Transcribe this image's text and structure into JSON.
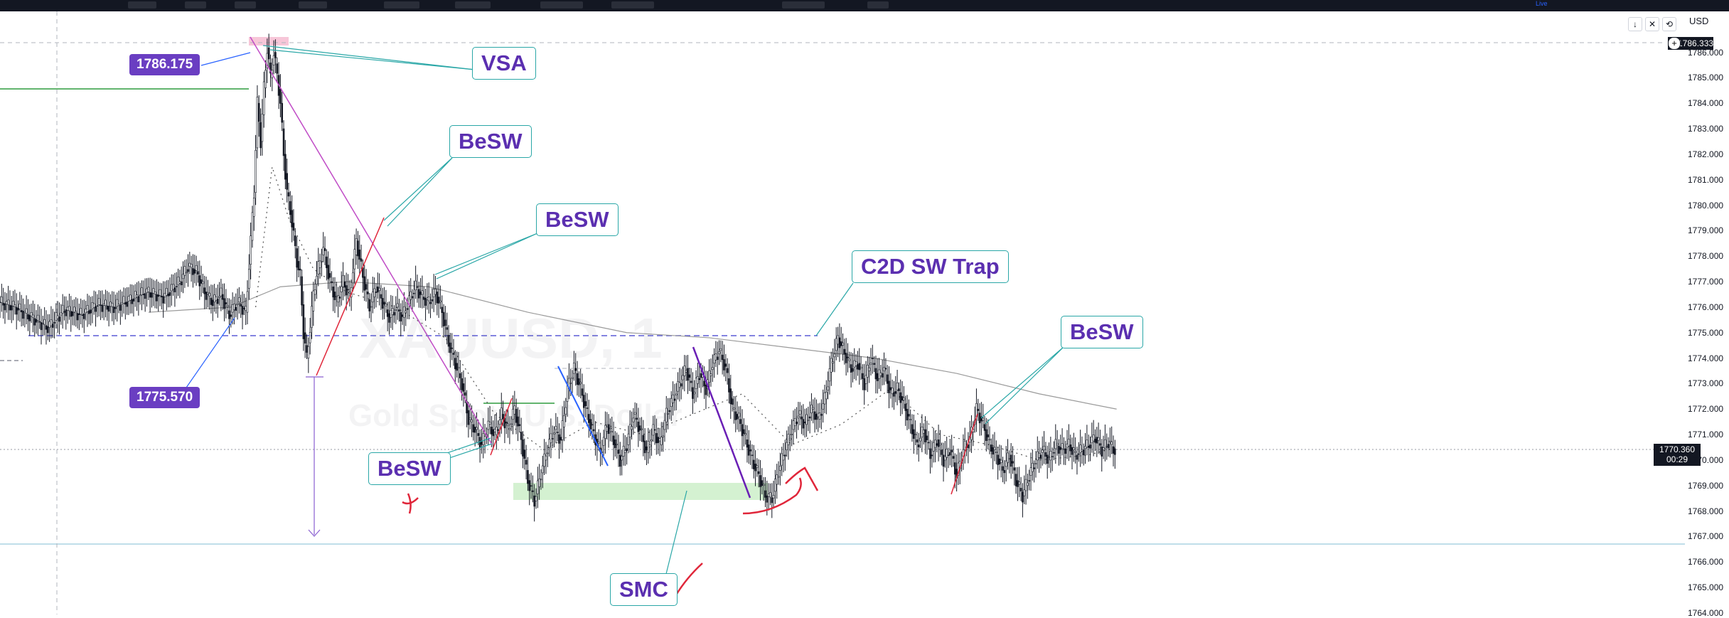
{
  "toolbar": {
    "live_label": "Live"
  },
  "currency": "USD",
  "watermark": {
    "symbol": "XAUUSD, 1",
    "description": "Gold Spot / U.S. Dollar"
  },
  "chart_data": {
    "type": "candlestick",
    "symbol": "XAUUSD",
    "interval": "1",
    "ylim": [
      1764.0,
      1786.6
    ],
    "yticks": [
      1764.0,
      1765.0,
      1766.0,
      1767.0,
      1768.0,
      1769.0,
      1770.0,
      1771.0,
      1772.0,
      1773.0,
      1774.0,
      1775.0,
      1776.0,
      1777.0,
      1778.0,
      1779.0,
      1780.0,
      1781.0,
      1782.0,
      1783.0,
      1784.0,
      1785.0,
      1786.0
    ],
    "ytick_labels": [
      "1764.000",
      "1765.000",
      "1766.000",
      "1767.000",
      "1768.000",
      "1769.000",
      "1770.000",
      "1771.000",
      "1772.000",
      "1773.000",
      "1774.000",
      "1775.000",
      "1776.000",
      "1777.000",
      "1778.000",
      "1779.000",
      "1780.000",
      "1781.000",
      "1782.000",
      "1783.000",
      "1784.000",
      "1785.000",
      "1786.000"
    ],
    "current_price": "1770.360",
    "countdown": "00:29",
    "top_price_tag": "1786.333",
    "price_path": [
      [
        0,
        1776.2
      ],
      [
        10,
        1776.0
      ],
      [
        20,
        1775.6
      ],
      [
        30,
        1775.2
      ],
      [
        40,
        1775.9
      ],
      [
        50,
        1775.7
      ],
      [
        60,
        1776.1
      ],
      [
        70,
        1776.0
      ],
      [
        80,
        1776.3
      ],
      [
        90,
        1776.6
      ],
      [
        100,
        1776.4
      ],
      [
        110,
        1777.0
      ],
      [
        115,
        1777.6
      ],
      [
        120,
        1777.4
      ],
      [
        125,
        1776.6
      ],
      [
        130,
        1776.2
      ],
      [
        135,
        1776.5
      ],
      [
        140,
        1775.7
      ],
      [
        145,
        1776.2
      ],
      [
        150,
        1775.8
      ],
      [
        155,
        1780.5
      ],
      [
        157,
        1784.0
      ],
      [
        159,
        1782.5
      ],
      [
        161,
        1784.6
      ],
      [
        163,
        1786.175
      ],
      [
        165,
        1785.0
      ],
      [
        167,
        1786.0
      ],
      [
        169,
        1785.1
      ],
      [
        171,
        1784.0
      ],
      [
        173,
        1782.0
      ],
      [
        175,
        1780.5
      ],
      [
        177,
        1779.8
      ],
      [
        179,
        1778.8
      ],
      [
        181,
        1777.8
      ],
      [
        183,
        1777.2
      ],
      [
        185,
        1775.0
      ],
      [
        187,
        1774.0
      ],
      [
        189,
        1775.2
      ],
      [
        191,
        1776.5
      ],
      [
        193,
        1777.3
      ],
      [
        197,
        1778.3
      ],
      [
        201,
        1777.0
      ],
      [
        205,
        1776.2
      ],
      [
        209,
        1777.0
      ],
      [
        213,
        1776.4
      ],
      [
        217,
        1778.6
      ],
      [
        221,
        1777.2
      ],
      [
        225,
        1776.0
      ],
      [
        229,
        1776.8
      ],
      [
        233,
        1776.2
      ],
      [
        237,
        1775.6
      ],
      [
        241,
        1776.0
      ],
      [
        245,
        1775.6
      ],
      [
        249,
        1776.3
      ],
      [
        253,
        1776.8
      ],
      [
        257,
        1776.4
      ],
      [
        261,
        1776.2
      ],
      [
        265,
        1776.6
      ],
      [
        269,
        1775.8
      ],
      [
        273,
        1774.6
      ],
      [
        277,
        1773.8
      ],
      [
        281,
        1773.0
      ],
      [
        285,
        1771.6
      ],
      [
        289,
        1771.2
      ],
      [
        293,
        1770.6
      ],
      [
        297,
        1771.4
      ],
      [
        301,
        1771.0
      ],
      [
        305,
        1771.8
      ],
      [
        309,
        1771.2
      ],
      [
        313,
        1772.0
      ],
      [
        317,
        1770.8
      ],
      [
        321,
        1769.2
      ],
      [
        325,
        1768.4
      ],
      [
        329,
        1769.5
      ],
      [
        333,
        1770.5
      ],
      [
        337,
        1771.2
      ],
      [
        341,
        1770.8
      ],
      [
        345,
        1772.8
      ],
      [
        349,
        1773.6
      ],
      [
        353,
        1772.8
      ],
      [
        357,
        1771.8
      ],
      [
        361,
        1771.0
      ],
      [
        365,
        1770.3
      ],
      [
        369,
        1771.4
      ],
      [
        373,
        1770.8
      ],
      [
        377,
        1770.0
      ],
      [
        381,
        1770.6
      ],
      [
        385,
        1771.8
      ],
      [
        389,
        1771.2
      ],
      [
        393,
        1770.3
      ],
      [
        397,
        1771.2
      ],
      [
        401,
        1770.6
      ],
      [
        405,
        1771.8
      ],
      [
        409,
        1772.4
      ],
      [
        413,
        1773.0
      ],
      [
        417,
        1773.6
      ],
      [
        421,
        1772.6
      ],
      [
        425,
        1773.4
      ],
      [
        429,
        1772.8
      ],
      [
        433,
        1773.8
      ],
      [
        437,
        1774.3
      ],
      [
        441,
        1773.6
      ],
      [
        445,
        1772.0
      ],
      [
        449,
        1771.6
      ],
      [
        453,
        1770.8
      ],
      [
        457,
        1770.0
      ],
      [
        461,
        1769.4
      ],
      [
        465,
        1768.6
      ],
      [
        469,
        1768.5
      ],
      [
        473,
        1769.6
      ],
      [
        477,
        1770.4
      ],
      [
        481,
        1771.2
      ],
      [
        485,
        1771.8
      ],
      [
        489,
        1771.4
      ],
      [
        493,
        1772.0
      ],
      [
        497,
        1771.6
      ],
      [
        501,
        1772.4
      ],
      [
        505,
        1773.8
      ],
      [
        509,
        1774.8
      ],
      [
        513,
        1774.2
      ],
      [
        517,
        1773.6
      ],
      [
        521,
        1773.8
      ],
      [
        525,
        1773.0
      ],
      [
        529,
        1774.0
      ],
      [
        533,
        1773.2
      ],
      [
        537,
        1773.6
      ],
      [
        541,
        1772.6
      ],
      [
        545,
        1772.8
      ],
      [
        549,
        1772.2
      ],
      [
        553,
        1771.4
      ],
      [
        557,
        1770.6
      ],
      [
        561,
        1771.2
      ],
      [
        565,
        1770.2
      ],
      [
        569,
        1770.8
      ],
      [
        573,
        1770.0
      ],
      [
        577,
        1770.4
      ],
      [
        581,
        1769.4
      ],
      [
        585,
        1770.4
      ],
      [
        589,
        1770.8
      ],
      [
        593,
        1772.0
      ],
      [
        597,
        1771.4
      ],
      [
        601,
        1770.6
      ],
      [
        605,
        1770.2
      ],
      [
        609,
        1769.6
      ],
      [
        613,
        1770.2
      ],
      [
        617,
        1769.2
      ],
      [
        621,
        1768.6
      ],
      [
        625,
        1769.4
      ],
      [
        629,
        1770.0
      ],
      [
        633,
        1770.4
      ],
      [
        637,
        1770.0
      ],
      [
        641,
        1770.6
      ],
      [
        645,
        1770.4
      ],
      [
        649,
        1770.6
      ],
      [
        653,
        1770.2
      ],
      [
        657,
        1770.4
      ],
      [
        661,
        1770.6
      ],
      [
        665,
        1770.9
      ],
      [
        669,
        1770.4
      ],
      [
        673,
        1770.7
      ],
      [
        677,
        1770.36
      ]
    ],
    "ema_fast": [
      [
        155,
        1776.0
      ],
      [
        165,
        1781.5
      ],
      [
        175,
        1779.5
      ],
      [
        190,
        1777.5
      ],
      [
        210,
        1776.6
      ],
      [
        240,
        1776.0
      ],
      [
        270,
        1774.8
      ],
      [
        300,
        1771.8
      ],
      [
        330,
        1770.4
      ],
      [
        360,
        1771.5
      ],
      [
        390,
        1771.0
      ],
      [
        420,
        1771.8
      ],
      [
        450,
        1772.6
      ],
      [
        480,
        1770.6
      ],
      [
        510,
        1771.4
      ],
      [
        540,
        1772.8
      ],
      [
        570,
        1771.0
      ],
      [
        600,
        1770.6
      ],
      [
        630,
        1770.0
      ],
      [
        660,
        1770.2
      ],
      [
        677,
        1770.5
      ]
    ],
    "ema_slow": [
      [
        90,
        1775.8
      ],
      [
        140,
        1776.0
      ],
      [
        170,
        1776.8
      ],
      [
        210,
        1777.0
      ],
      [
        260,
        1776.8
      ],
      [
        320,
        1775.8
      ],
      [
        380,
        1775.0
      ],
      [
        430,
        1774.8
      ],
      [
        480,
        1774.4
      ],
      [
        530,
        1774.0
      ],
      [
        580,
        1773.4
      ],
      [
        630,
        1772.6
      ],
      [
        677,
        1772.0
      ]
    ],
    "annotations": [
      {
        "text": "VSA"
      },
      {
        "text": "BeSW"
      },
      {
        "text": "BeSW"
      },
      {
        "text": "C2D SW Trap"
      },
      {
        "text": "BeSW"
      },
      {
        "text": "BeSW"
      },
      {
        "text": "SMC"
      }
    ],
    "price_tags": [
      "1786.175",
      "1775.570"
    ]
  }
}
